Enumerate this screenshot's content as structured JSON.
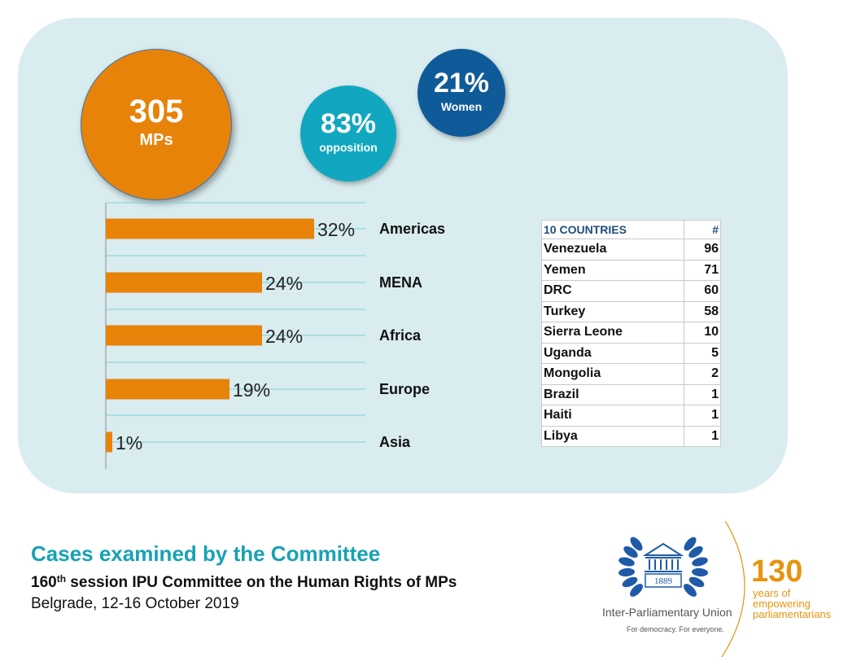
{
  "stats": {
    "mps": {
      "value": "305",
      "label": "MPs"
    },
    "opposition": {
      "value": "83%",
      "label": "opposition"
    },
    "women": {
      "value": "21%",
      "label": "Women"
    }
  },
  "chart_data": {
    "type": "bar",
    "orientation": "horizontal",
    "categories": [
      "Americas",
      "MENA",
      "Africa",
      "Europe",
      "Asia"
    ],
    "values": [
      32,
      24,
      24,
      19,
      1
    ],
    "labels": [
      "32%",
      "24%",
      "24%",
      "19%",
      "1%"
    ],
    "xlim": [
      0,
      40
    ],
    "title": "",
    "xlabel": "",
    "ylabel": "",
    "grid": true,
    "colors": {
      "bar": "#e8830a",
      "grid": "#7ccfd9",
      "axis": "#8a8a8a"
    }
  },
  "countries_table": {
    "header": [
      "10 COUNTRIES",
      "#"
    ],
    "rows": [
      [
        "Venezuela",
        "96"
      ],
      [
        "Yemen",
        "71"
      ],
      [
        "DRC",
        "60"
      ],
      [
        "Turkey",
        "58"
      ],
      [
        "Sierra Leone",
        "10"
      ],
      [
        "Uganda",
        "5"
      ],
      [
        "Mongolia",
        "2"
      ],
      [
        "Brazil",
        "1"
      ],
      [
        "Haiti",
        "1"
      ],
      [
        "Libya",
        "1"
      ]
    ]
  },
  "footer": {
    "title": "Cases examined by the Committee",
    "subtitle_number": "160",
    "subtitle_suffix": "th",
    "subtitle_rest": " session IPU Committee on the Human Rights of MPs",
    "location": "Belgrade, 12-16 October 2019"
  },
  "logo": {
    "year": "1889",
    "org_name": "Inter-Parliamentary Union",
    "motto": "For democracy. For everyone.",
    "anniversary_number": "130",
    "anniversary_line1": "years of",
    "anniversary_line2": "empowering",
    "anniversary_line3": "parliamentarians"
  },
  "colors": {
    "panel": "#d9ecef",
    "orange": "#e8830a",
    "teal": "#11a7c1",
    "navy": "#0f5b99",
    "title_teal": "#17a2b3",
    "gold": "#e8930f",
    "ipu_blue": "#1e5aa8"
  }
}
